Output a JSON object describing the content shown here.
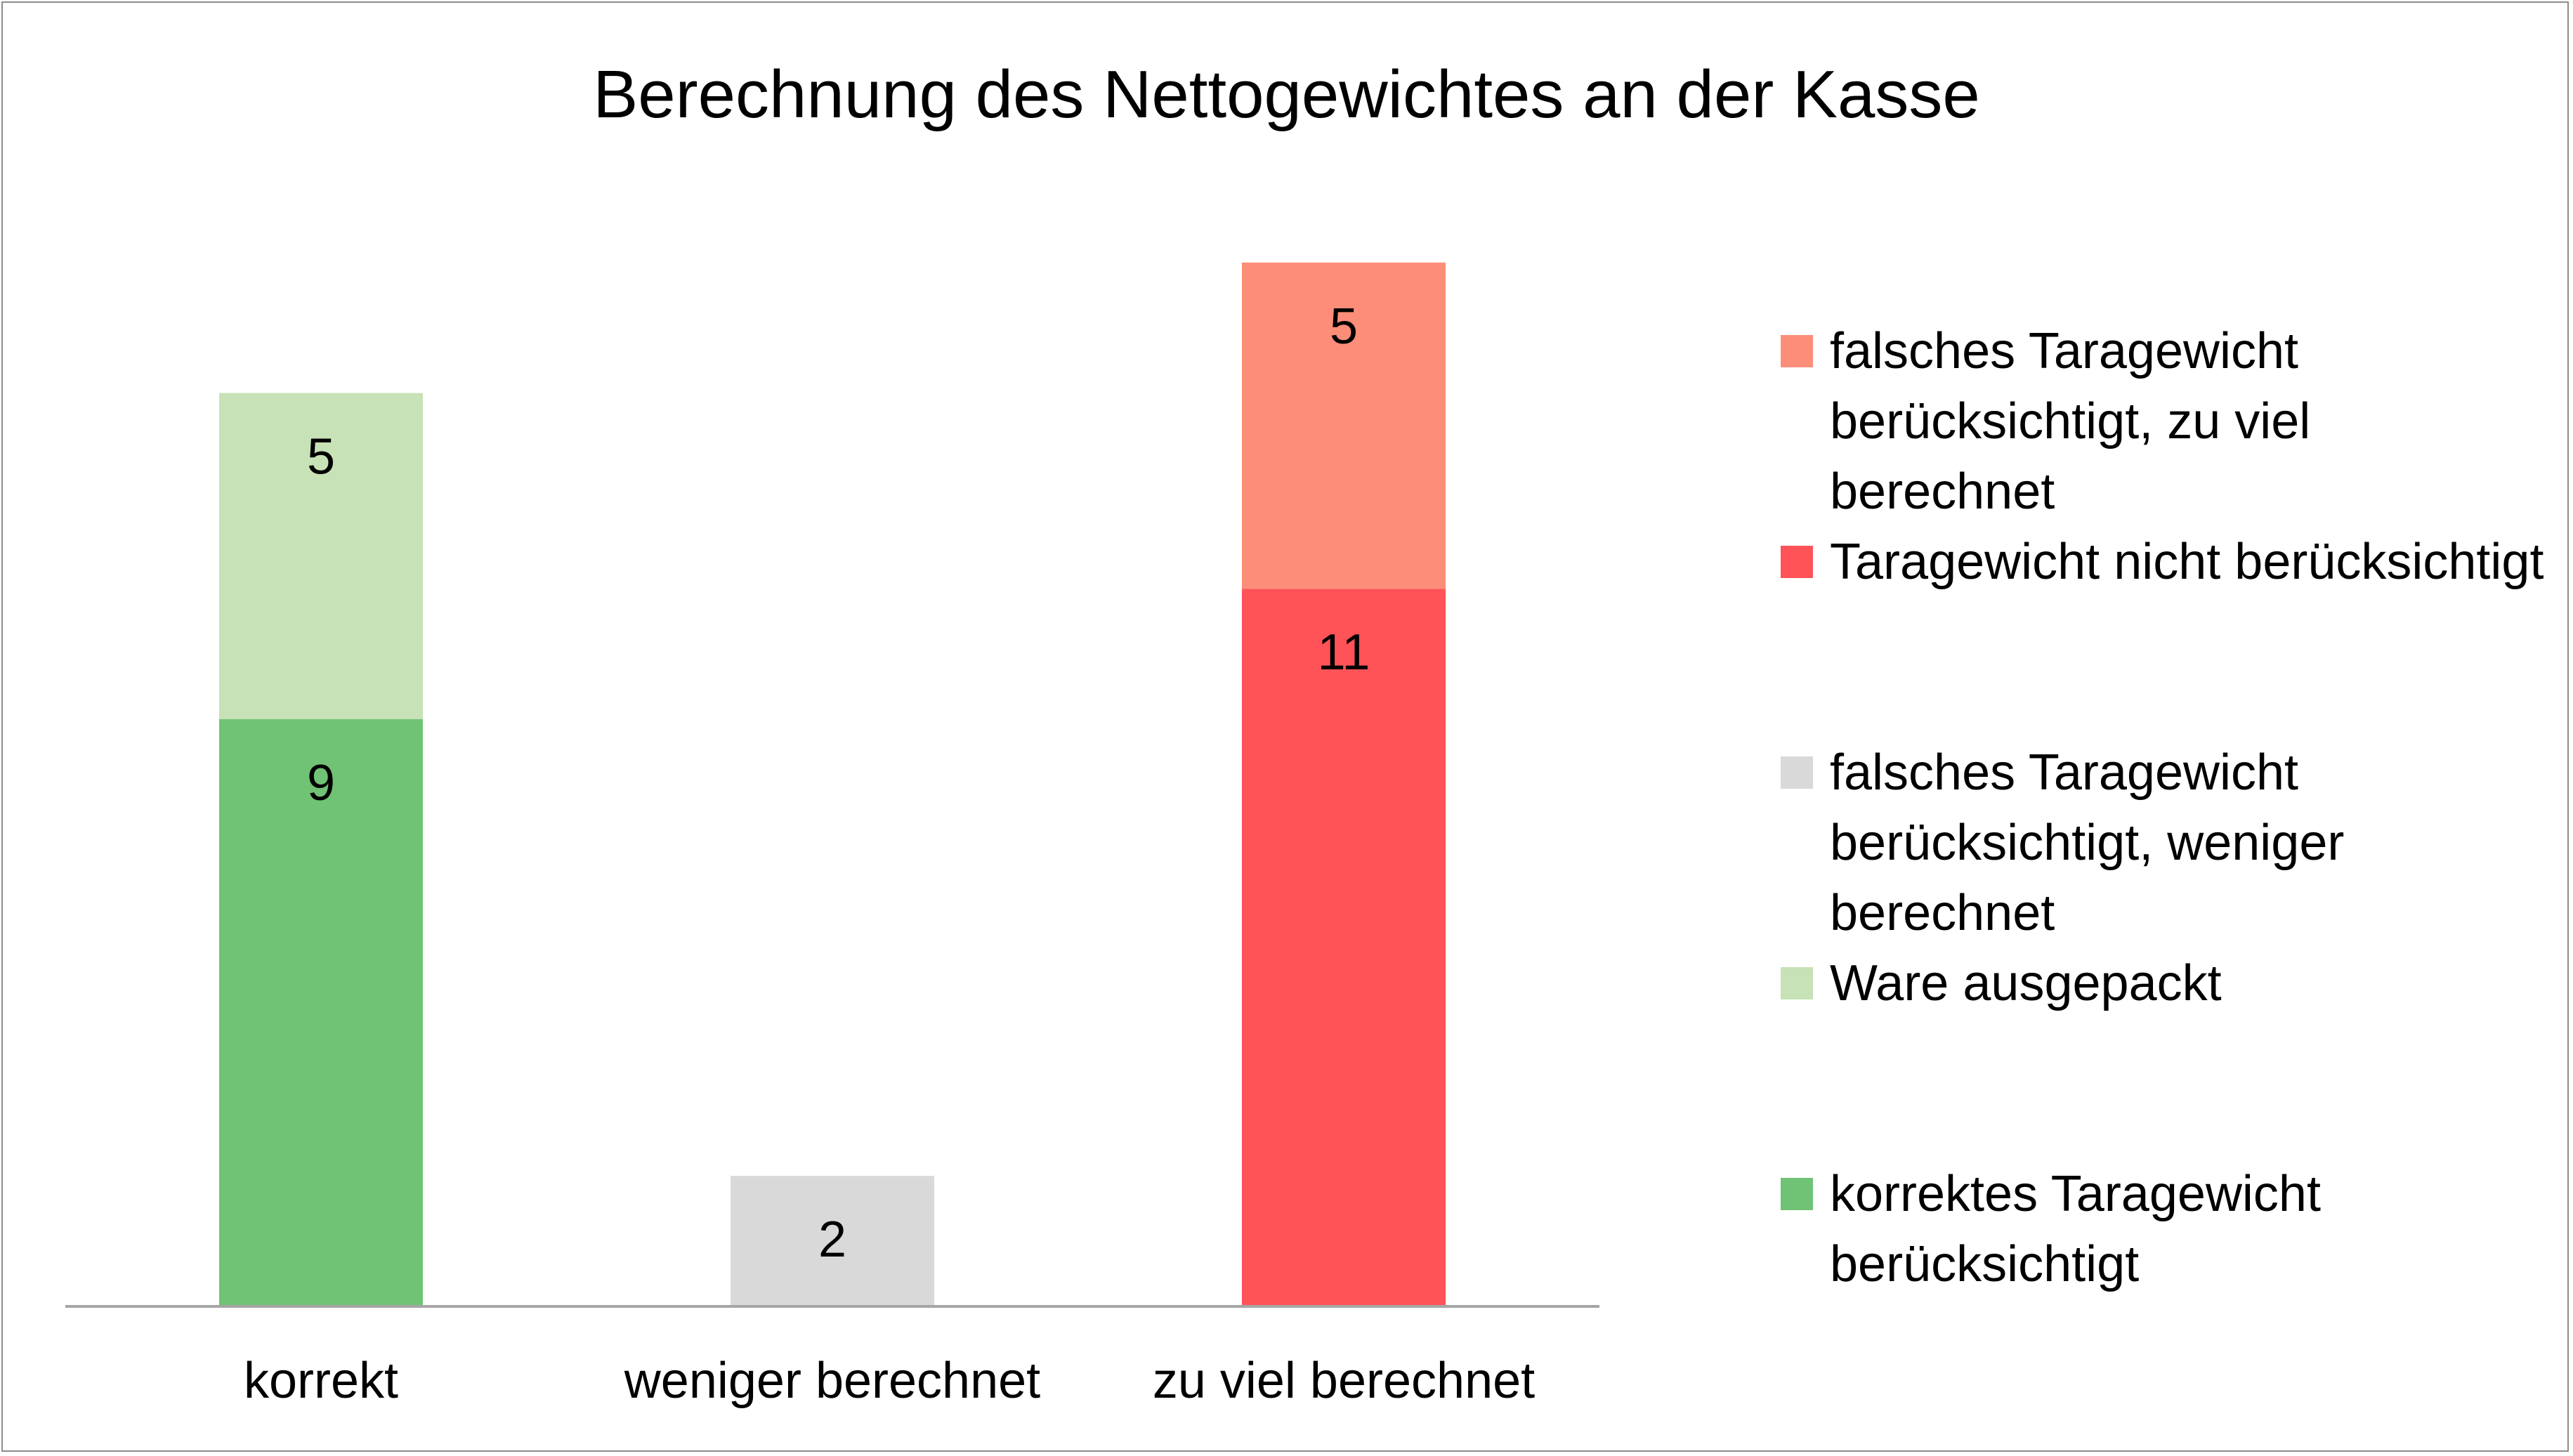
{
  "chart_data": {
    "type": "bar",
    "stacked": true,
    "title": "Berechnung des Nettogewichtes an der Kasse",
    "categories": [
      "korrekt",
      "weniger berechnet",
      "zu viel berechnet"
    ],
    "ylim": [
      0,
      18
    ],
    "grid": false,
    "legend_position": "right",
    "series": [
      {
        "name": "korrektes Taragewicht berücksichtigt",
        "color": "#70c274",
        "values": [
          9,
          null,
          null
        ],
        "labels": [
          "9",
          "",
          ""
        ]
      },
      {
        "name": "Ware ausgepackt",
        "color": "#c6e2b6",
        "values": [
          5,
          null,
          null
        ],
        "labels": [
          "5",
          "",
          ""
        ]
      },
      {
        "name": "falsches Taragewicht berücksichtigt, weniger berechnet",
        "color": "#d9d9d9",
        "values": [
          null,
          2,
          null
        ],
        "labels": [
          "",
          "2",
          ""
        ]
      },
      {
        "name": "Taragewicht nicht berücksichtigt",
        "color": "#ff5357",
        "values": [
          null,
          null,
          11
        ],
        "labels": [
          "",
          "",
          "11"
        ]
      },
      {
        "name": "falsches Taragewicht berücksichtigt, zu viel berechnet",
        "color": "#fc8e79",
        "values": [
          null,
          null,
          5
        ],
        "labels": [
          "",
          "",
          "5"
        ]
      }
    ],
    "legend_order": [
      4,
      3,
      2,
      1,
      0
    ]
  }
}
